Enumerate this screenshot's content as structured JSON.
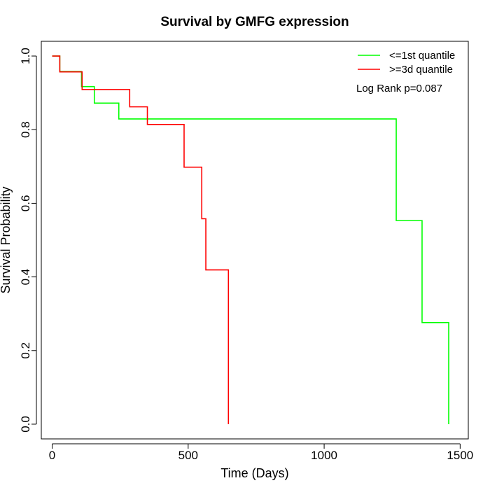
{
  "chart_data": {
    "type": "line",
    "title": "Survival by GMFG expression",
    "xlabel": "Time (Days)",
    "ylabel": "Survival Probability",
    "xlim": [
      -40,
      1530
    ],
    "ylim": [
      -0.04,
      1.04
    ],
    "x_ticks": [
      0,
      500,
      1000,
      1500
    ],
    "y_ticks": [
      0.0,
      0.2,
      0.4,
      0.6,
      0.8,
      1.0
    ],
    "x_tick_labels": [
      "0",
      "500",
      "1000",
      "1500"
    ],
    "y_tick_labels": [
      "0.0",
      "0.2",
      "0.4",
      "0.6",
      "0.8",
      "1.0"
    ],
    "grid": false,
    "legend_position": "top-right",
    "annotation": "Log Rank p=0.087",
    "series": [
      {
        "name": "<=1st quantile",
        "color": "#00ff00",
        "step": true,
        "x": [
          0,
          28,
          108,
          155,
          245,
          1265,
          1360,
          1458
        ],
        "y": [
          1.0,
          0.958,
          0.917,
          0.872,
          0.829,
          0.553,
          0.276,
          0.0
        ]
      },
      {
        "name": ">=3d quantile",
        "color": "#ff0000",
        "step": true,
        "x": [
          0,
          28,
          110,
          285,
          350,
          485,
          550,
          565,
          648
        ],
        "y": [
          1.0,
          0.957,
          0.909,
          0.862,
          0.814,
          0.698,
          0.558,
          0.419,
          0.0
        ]
      }
    ]
  }
}
